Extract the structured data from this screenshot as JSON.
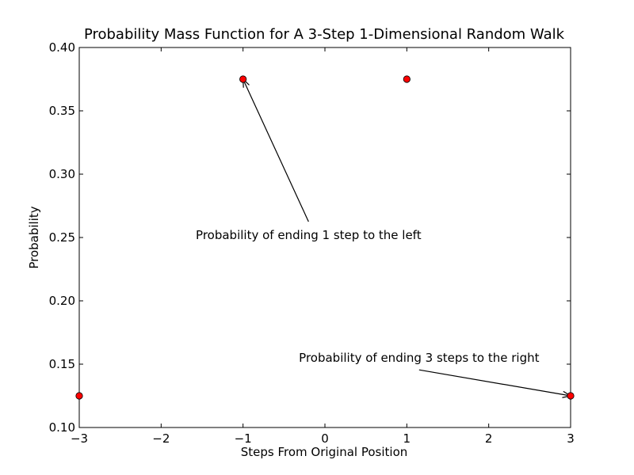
{
  "chart_data": {
    "type": "scatter",
    "title": "Probability Mass Function for A 3-Step 1-Dimensional Random Walk",
    "xlabel": "Steps From Original Position",
    "ylabel": "Probability",
    "xlim": [
      -3,
      3
    ],
    "ylim": [
      0.1,
      0.4
    ],
    "x_ticks": [
      -3,
      -2,
      -1,
      0,
      1,
      2,
      3
    ],
    "x_tick_labels": [
      "−3",
      "−2",
      "−1",
      "0",
      "1",
      "2",
      "3"
    ],
    "y_ticks": [
      0.1,
      0.15,
      0.2,
      0.25,
      0.3,
      0.35,
      0.4
    ],
    "y_tick_labels": [
      "0.10",
      "0.15",
      "0.20",
      "0.25",
      "0.30",
      "0.35",
      "0.40"
    ],
    "grid": false,
    "marker_color": "#ff0000",
    "marker_edge_color": "#000000",
    "points": [
      {
        "x": -3,
        "y": 0.125
      },
      {
        "x": -1,
        "y": 0.375
      },
      {
        "x": 1,
        "y": 0.375
      },
      {
        "x": 3,
        "y": 0.125
      }
    ],
    "annotations": [
      {
        "text": "Probability of ending 1 step to the left",
        "target": {
          "x": -1,
          "y": 0.375
        },
        "text_anchor_at": {
          "x": -0.2,
          "y": 0.25
        }
      },
      {
        "text": "Probability of ending 3 steps to the right",
        "target": {
          "x": 3,
          "y": 0.125
        },
        "text_anchor_at": {
          "x": 1.15,
          "y": 0.148
        }
      }
    ]
  }
}
